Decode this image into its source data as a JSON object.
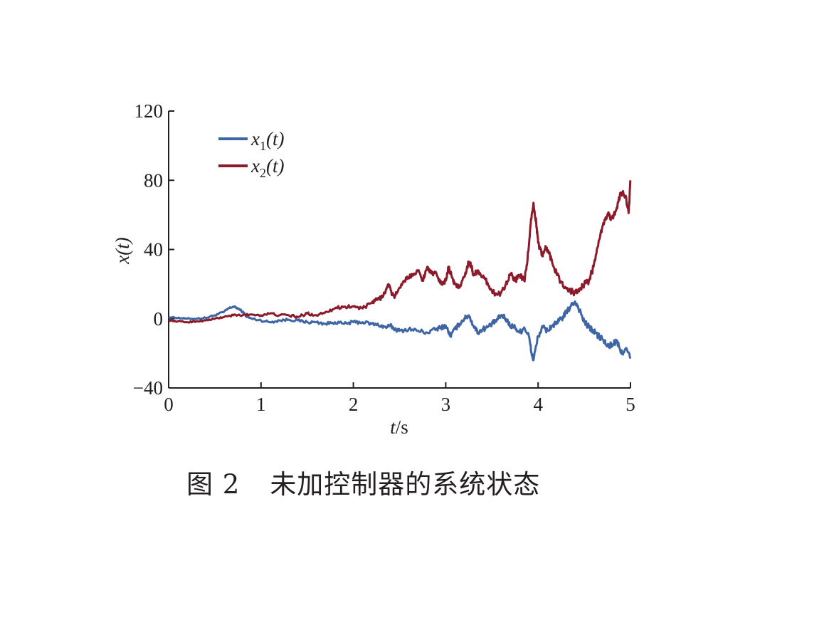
{
  "caption": {
    "label": "图 2",
    "text": "未加控制器的系统状态"
  },
  "chart_data": {
    "type": "line",
    "title": "",
    "xlabel": "t/s",
    "ylabel": "x(t)",
    "xlim": [
      0,
      5
    ],
    "ylim": [
      -40,
      120
    ],
    "xticks": [
      0,
      1,
      2,
      3,
      4,
      5
    ],
    "yticks": [
      -40,
      0,
      40,
      80,
      120
    ],
    "ytick_labels": [
      "−40",
      "0",
      "40",
      "80",
      "120"
    ],
    "grid": false,
    "legend_position": "top-left",
    "series": [
      {
        "name": "x1(t)",
        "legend_main": "x",
        "legend_sub": "1",
        "legend_tail": "(t)",
        "color": "#3f66a4",
        "x": [
          0,
          0.1,
          0.2,
          0.3,
          0.4,
          0.5,
          0.6,
          0.65,
          0.7,
          0.75,
          0.8,
          0.85,
          0.9,
          1.0,
          1.1,
          1.2,
          1.3,
          1.4,
          1.5,
          1.6,
          1.7,
          1.8,
          1.9,
          2.0,
          2.1,
          2.2,
          2.3,
          2.35,
          2.4,
          2.45,
          2.5,
          2.6,
          2.7,
          2.8,
          2.9,
          2.95,
          3.0,
          3.05,
          3.1,
          3.15,
          3.2,
          3.25,
          3.3,
          3.35,
          3.4,
          3.45,
          3.5,
          3.55,
          3.6,
          3.65,
          3.7,
          3.75,
          3.8,
          3.85,
          3.9,
          3.93,
          3.95,
          4.0,
          4.05,
          4.1,
          4.15,
          4.2,
          4.25,
          4.3,
          4.35,
          4.4,
          4.45,
          4.5,
          4.55,
          4.6,
          4.65,
          4.7,
          4.75,
          4.8,
          4.85,
          4.9,
          4.95,
          5.0
        ],
        "y": [
          1,
          0.5,
          0,
          0,
          0.5,
          2,
          4,
          6,
          7,
          6,
          4,
          1,
          0,
          -1,
          -2,
          -1,
          -0.5,
          -1,
          -2,
          -2,
          -3,
          -2,
          -3,
          -2,
          -2,
          -3,
          -4,
          -5,
          -4,
          -6,
          -7,
          -6,
          -7,
          -8,
          -6,
          -5,
          -4,
          -10,
          -6,
          -3,
          0,
          2,
          -4,
          -8,
          -6,
          -5,
          -3,
          -1,
          2,
          0,
          -4,
          -5,
          -8,
          -5,
          -10,
          -20,
          -24,
          -10,
          -5,
          -7,
          -4,
          -3,
          0,
          3,
          7,
          10,
          5,
          -2,
          -5,
          -7,
          -10,
          -12,
          -16,
          -15,
          -13,
          -20,
          -17,
          -23
        ]
      },
      {
        "name": "x2(t)",
        "legend_main": "x",
        "legend_sub": "2",
        "legend_tail": "(t)",
        "color": "#8b1a2b",
        "x": [
          0,
          0.1,
          0.2,
          0.3,
          0.4,
          0.5,
          0.6,
          0.7,
          0.8,
          0.9,
          1.0,
          1.1,
          1.2,
          1.3,
          1.4,
          1.5,
          1.6,
          1.7,
          1.8,
          1.9,
          2.0,
          2.1,
          2.2,
          2.25,
          2.3,
          2.35,
          2.38,
          2.42,
          2.45,
          2.5,
          2.55,
          2.6,
          2.65,
          2.7,
          2.75,
          2.8,
          2.85,
          2.9,
          2.95,
          3.0,
          3.03,
          3.08,
          3.1,
          3.15,
          3.2,
          3.25,
          3.28,
          3.3,
          3.35,
          3.4,
          3.45,
          3.5,
          3.55,
          3.6,
          3.65,
          3.7,
          3.75,
          3.8,
          3.85,
          3.88,
          3.92,
          3.95,
          3.98,
          4.0,
          4.05,
          4.08,
          4.12,
          4.15,
          4.2,
          4.25,
          4.3,
          4.35,
          4.4,
          4.45,
          4.5,
          4.55,
          4.6,
          4.65,
          4.7,
          4.75,
          4.8,
          4.85,
          4.9,
          4.95,
          4.98,
          5.0
        ],
        "y": [
          -1,
          -1.5,
          -2,
          -1.5,
          -1,
          0,
          1,
          2,
          2,
          2.5,
          2,
          3,
          2,
          2,
          1,
          3,
          2,
          4,
          6,
          7,
          7,
          6,
          9,
          11,
          12,
          16,
          20,
          14,
          13,
          18,
          22,
          24,
          26,
          28,
          22,
          30,
          26,
          26,
          20,
          22,
          30,
          22,
          20,
          18,
          24,
          33,
          30,
          25,
          28,
          24,
          21,
          16,
          14,
          15,
          20,
          26,
          22,
          25,
          22,
          31,
          55,
          67,
          55,
          44,
          36,
          42,
          38,
          33,
          26,
          21,
          18,
          16,
          15,
          17,
          20,
          22,
          30,
          42,
          54,
          60,
          58,
          64,
          73,
          71,
          61,
          80
        ]
      }
    ]
  }
}
